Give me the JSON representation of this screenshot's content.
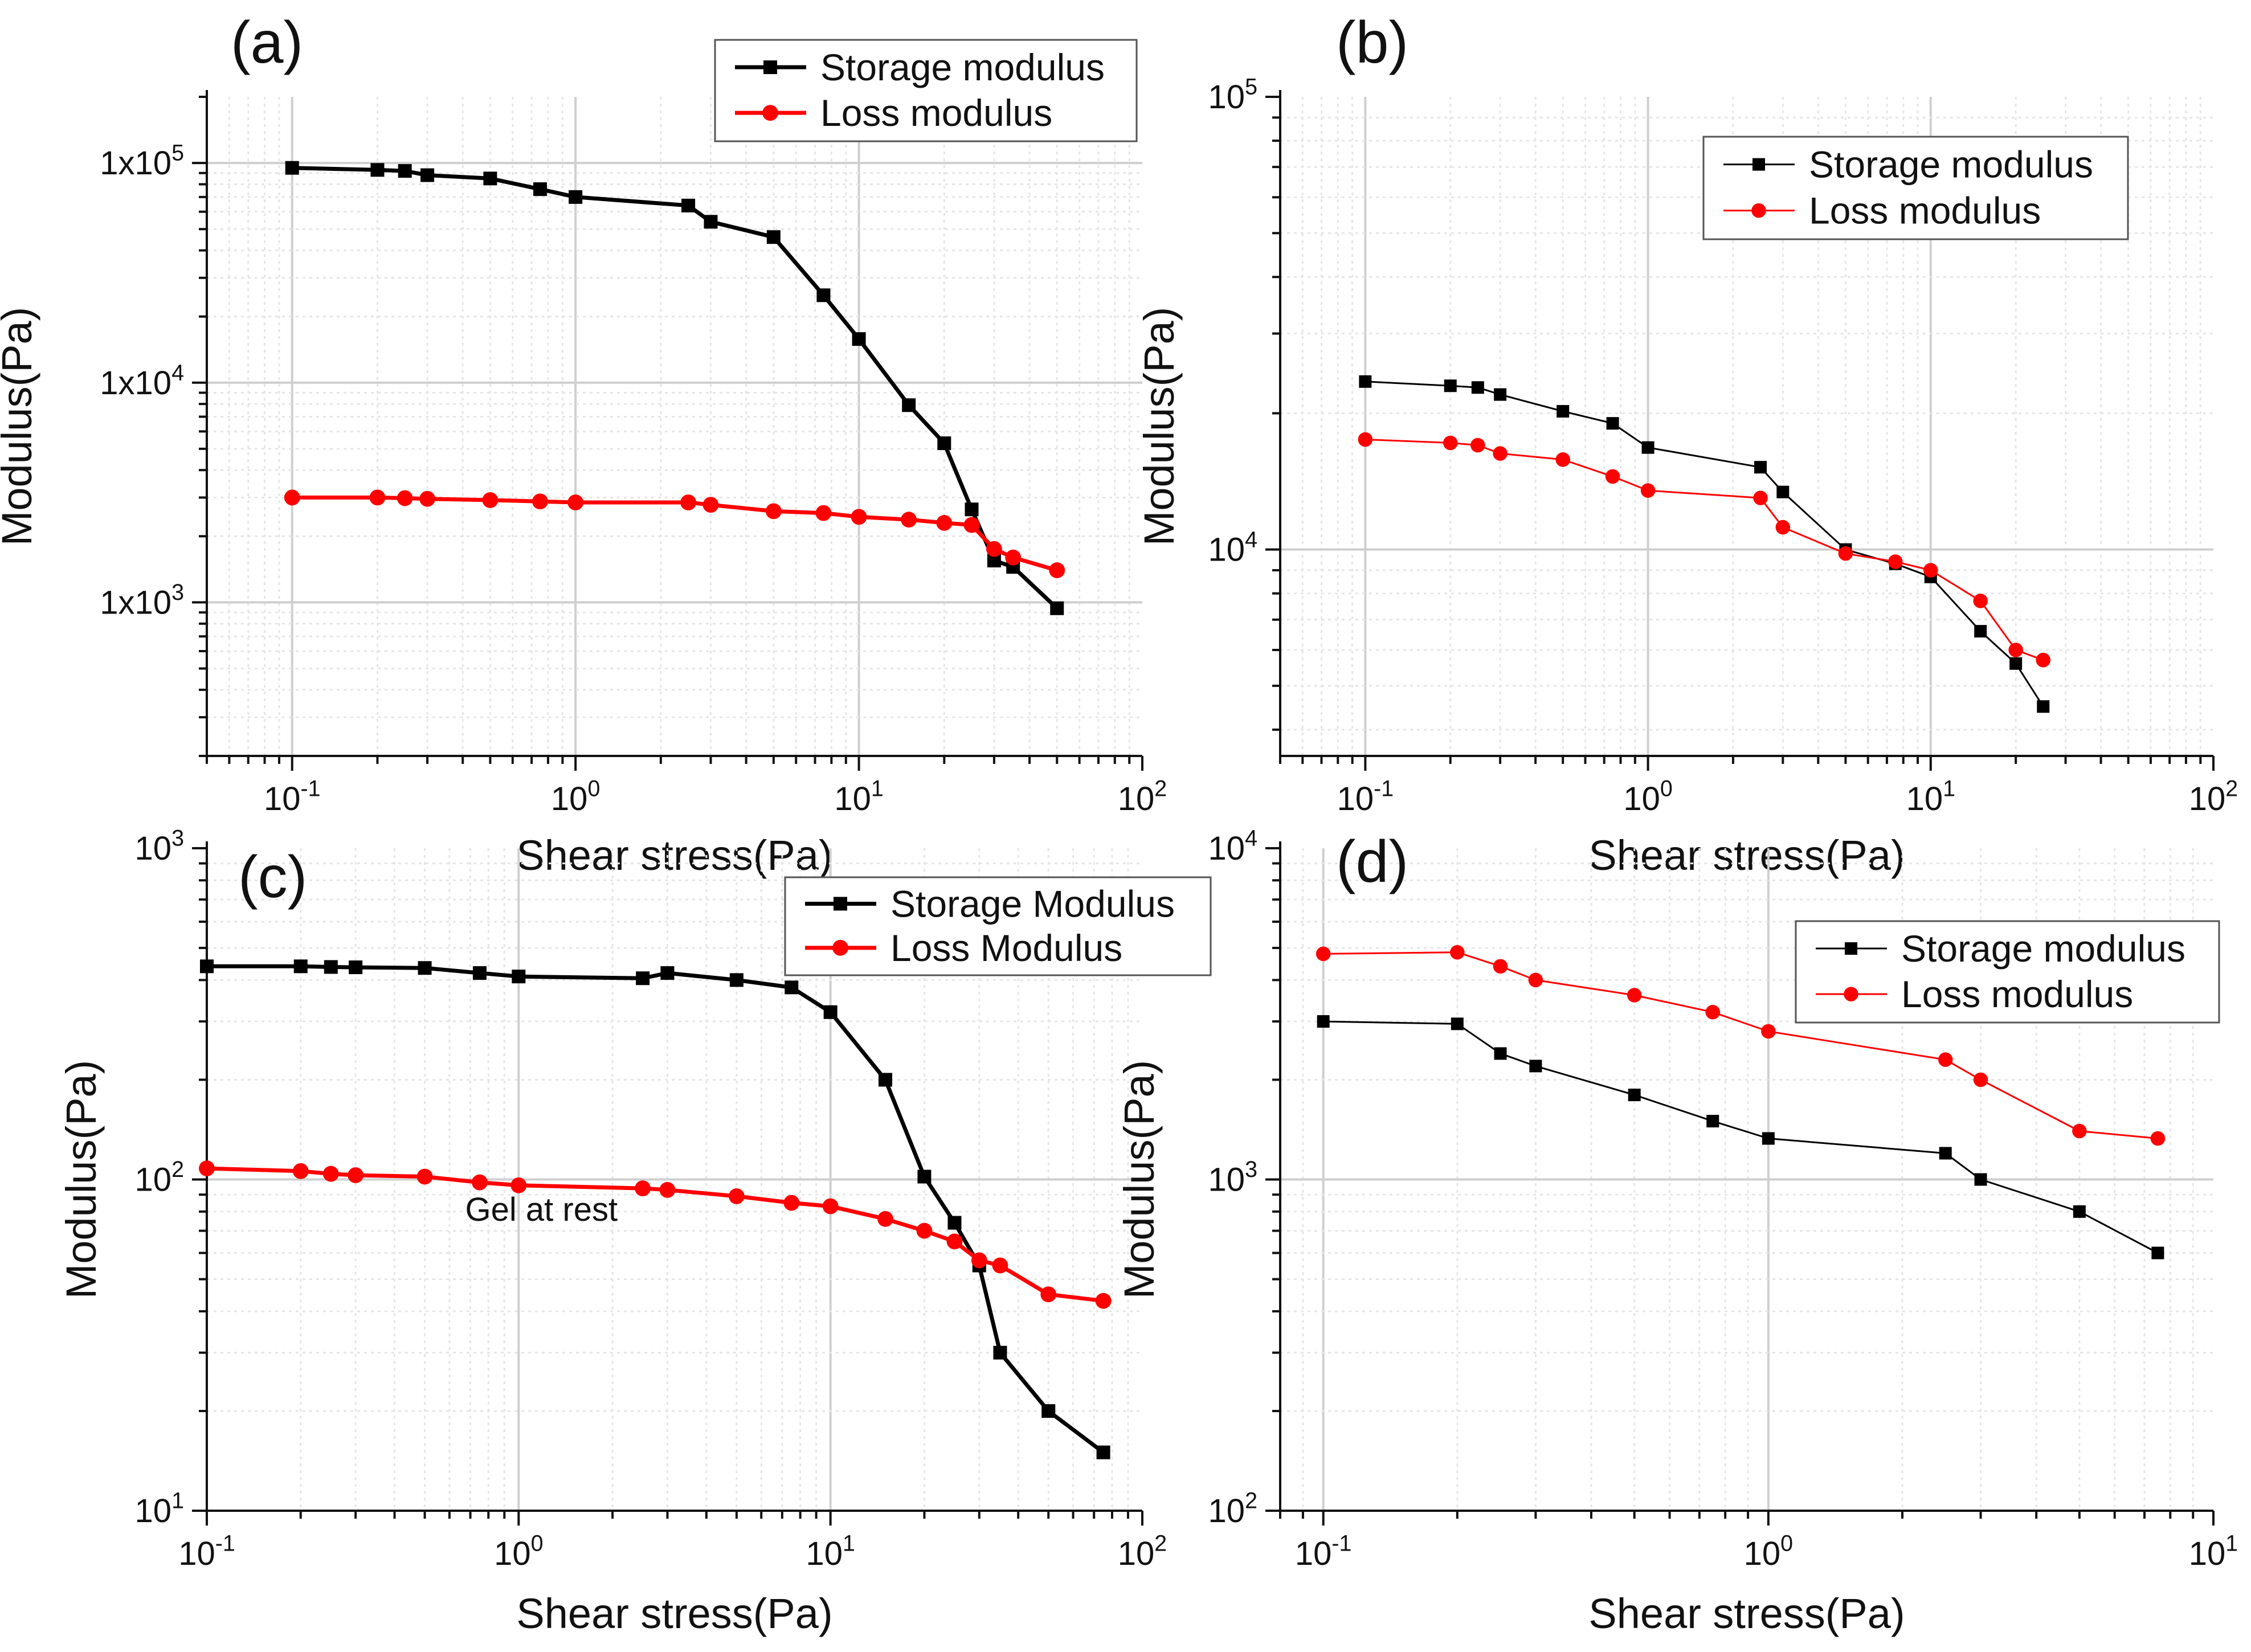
{
  "chart_data": [
    {
      "id": "a",
      "panel_label": "(a)",
      "type": "line",
      "xlabel": "Shear stress(Pa)",
      "ylabel": "Modulus(Pa)",
      "x_scale": "log",
      "y_scale": "log",
      "xlim": [
        0.05,
        100
      ],
      "ylim": [
        200,
        200000
      ],
      "x_ticks": [
        {
          "value": 0.1,
          "base": "10",
          "exp": "-1"
        },
        {
          "value": 1,
          "base": "10",
          "exp": "0"
        },
        {
          "value": 10,
          "base": "10",
          "exp": "1"
        },
        {
          "value": 100,
          "base": "10",
          "exp": "2"
        }
      ],
      "y_ticks": [
        {
          "value": 1000,
          "base": "1x10",
          "exp": "3"
        },
        {
          "value": 10000,
          "base": "1x10",
          "exp": "4"
        },
        {
          "value": 100000,
          "base": "1x10",
          "exp": "5"
        }
      ],
      "grid": true,
      "legend_position": "top-right",
      "series": [
        {
          "name": "Storage modulus",
          "color": "#000000",
          "marker": "square",
          "x": [
            0.1,
            0.2,
            0.25,
            0.3,
            0.5,
            0.75,
            1,
            2.5,
            3,
            5,
            7.5,
            10,
            15,
            20,
            25,
            30,
            35,
            50
          ],
          "y": [
            95000,
            93000,
            92000,
            88000,
            85000,
            76000,
            70000,
            64000,
            54000,
            46000,
            25000,
            15800,
            7900,
            5300,
            2650,
            1550,
            1450,
            940
          ]
        },
        {
          "name": "Loss modulus",
          "color": "#ff0000",
          "marker": "circle",
          "x": [
            0.1,
            0.2,
            0.25,
            0.3,
            0.5,
            0.75,
            1,
            2.5,
            3,
            5,
            7.5,
            10,
            15,
            20,
            25,
            30,
            35,
            50
          ],
          "y": [
            3000,
            3000,
            2980,
            2960,
            2920,
            2880,
            2850,
            2850,
            2780,
            2600,
            2550,
            2450,
            2380,
            2300,
            2250,
            1750,
            1600,
            1400
          ]
        }
      ]
    },
    {
      "id": "b",
      "panel_label": "(b)",
      "type": "line",
      "xlabel": "Shear stress(Pa)",
      "ylabel": "Modulus(Pa)",
      "x_scale": "log",
      "y_scale": "log",
      "xlim": [
        0.05,
        100
      ],
      "ylim": [
        3500,
        100000
      ],
      "x_ticks": [
        {
          "value": 0.1,
          "base": "10",
          "exp": "-1"
        },
        {
          "value": 1,
          "base": "10",
          "exp": "0"
        },
        {
          "value": 10,
          "base": "10",
          "exp": "1"
        },
        {
          "value": 100,
          "base": "10",
          "exp": "2"
        }
      ],
      "y_ticks": [
        {
          "value": 10000,
          "base": "10",
          "exp": "4"
        },
        {
          "value": 100000,
          "base": "10",
          "exp": "5"
        }
      ],
      "grid": true,
      "legend_position": "top-right",
      "series": [
        {
          "name": "Storage modulus",
          "color": "#000000",
          "marker": "square",
          "x": [
            0.1,
            0.2,
            0.25,
            0.3,
            0.5,
            0.75,
            1,
            2.5,
            3,
            5,
            7.5,
            10,
            15,
            20,
            25
          ],
          "y": [
            23500,
            23000,
            22800,
            22000,
            20200,
            19000,
            16800,
            15200,
            13400,
            10000,
            9300,
            8700,
            6600,
            5600,
            4500
          ]
        },
        {
          "name": "Loss modulus",
          "color": "#ff0000",
          "marker": "circle",
          "x": [
            0.1,
            0.2,
            0.25,
            0.3,
            0.5,
            0.75,
            1,
            2.5,
            3,
            5,
            7.5,
            10,
            15,
            20,
            25
          ],
          "y": [
            17500,
            17200,
            17000,
            16300,
            15800,
            14500,
            13500,
            13000,
            11200,
            9800,
            9400,
            9000,
            7700,
            6000,
            5700
          ]
        }
      ]
    },
    {
      "id": "c",
      "panel_label": "(c)",
      "type": "line",
      "xlabel": "Shear stress(Pa)",
      "ylabel": "Modulus(Pa)",
      "x_scale": "log",
      "y_scale": "log",
      "xlim": [
        0.1,
        100
      ],
      "ylim": [
        10,
        1000
      ],
      "x_ticks": [
        {
          "value": 0.1,
          "base": "10",
          "exp": "-1"
        },
        {
          "value": 1,
          "base": "10",
          "exp": "0"
        },
        {
          "value": 10,
          "base": "10",
          "exp": "1"
        },
        {
          "value": 100,
          "base": "10",
          "exp": "2"
        }
      ],
      "y_ticks": [
        {
          "value": 10,
          "base": "10",
          "exp": "1"
        },
        {
          "value": 100,
          "base": "10",
          "exp": "2"
        },
        {
          "value": 1000,
          "base": "10",
          "exp": "3"
        }
      ],
      "grid": true,
      "legend_position": "top-right",
      "annotation": {
        "text": "Gel at rest",
        "x": 1,
        "y": 75
      },
      "series": [
        {
          "name": "Storage Modulus",
          "color": "#000000",
          "marker": "square",
          "x": [
            0.1,
            0.2,
            0.25,
            0.3,
            0.5,
            0.75,
            1,
            2.5,
            3,
            5,
            7.5,
            10,
            15,
            20,
            25,
            30,
            35,
            50,
            75
          ],
          "y": [
            440,
            440,
            438,
            437,
            435,
            420,
            410,
            405,
            420,
            400,
            380,
            320,
            200,
            102,
            74,
            55,
            30,
            20,
            15
          ]
        },
        {
          "name": "Loss Modulus",
          "color": "#ff0000",
          "marker": "circle",
          "x": [
            0.1,
            0.2,
            0.25,
            0.3,
            0.5,
            0.75,
            1,
            2.5,
            3,
            5,
            7.5,
            10,
            15,
            20,
            25,
            30,
            35,
            50,
            75
          ],
          "y": [
            108,
            106,
            104,
            103,
            102,
            98,
            96,
            94,
            93,
            89,
            85,
            83,
            76,
            70,
            65,
            57,
            55,
            45,
            43
          ]
        }
      ]
    },
    {
      "id": "d",
      "panel_label": "(d)",
      "type": "line",
      "xlabel": "Shear stress(Pa)",
      "ylabel": "Modulus(Pa)",
      "x_scale": "log",
      "y_scale": "log",
      "xlim": [
        0.08,
        10
      ],
      "ylim": [
        100,
        10000
      ],
      "x_ticks": [
        {
          "value": 0.1,
          "base": "10",
          "exp": "-1"
        },
        {
          "value": 1,
          "base": "10",
          "exp": "0"
        },
        {
          "value": 10,
          "base": "10",
          "exp": "1"
        }
      ],
      "y_ticks": [
        {
          "value": 100,
          "base": "10",
          "exp": "2"
        },
        {
          "value": 1000,
          "base": "10",
          "exp": "3"
        },
        {
          "value": 10000,
          "base": "10",
          "exp": "4"
        }
      ],
      "grid": true,
      "legend_position": "top-right",
      "series": [
        {
          "name": "Storage modulus",
          "color": "#000000",
          "marker": "square",
          "x": [
            0.1,
            0.2,
            0.25,
            0.3,
            0.5,
            0.75,
            1,
            2.5,
            3,
            5,
            7.5
          ],
          "y": [
            3000,
            2950,
            2400,
            2200,
            1800,
            1500,
            1330,
            1200,
            1000,
            800,
            600
          ]
        },
        {
          "name": "Loss modulus",
          "color": "#ff0000",
          "marker": "circle",
          "x": [
            0.1,
            0.2,
            0.25,
            0.3,
            0.5,
            0.75,
            1,
            2.5,
            3,
            5,
            7.5
          ],
          "y": [
            4800,
            4850,
            4400,
            4000,
            3600,
            3200,
            2800,
            2300,
            2000,
            1400,
            1330
          ]
        }
      ]
    }
  ]
}
